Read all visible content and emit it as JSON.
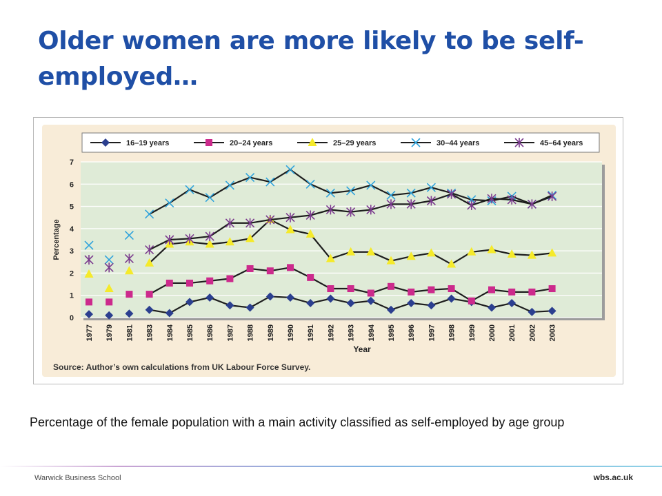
{
  "slide": {
    "title": "Older women are more likely to be self-employed…",
    "caption": "Percentage of the female population with a main activity classified as self-employed by age group",
    "footer_school": "Warwick Business School",
    "footer_url": "wbs.ac.uk"
  },
  "colors": {
    "title": "#1f4fa6",
    "panel_bg": "#f8ecd8",
    "plot_bg": "#dfebd7",
    "grid": "#ffffff",
    "series_16_19": "#2b3f8f",
    "series_20_24": "#cc2a8c",
    "series_25_29": "#f5ea2a",
    "series_30_44": "#2fa3dc",
    "series_45_64": "#7b3b8e",
    "line": "#1e1e1e"
  },
  "chart_data": {
    "type": "line",
    "title": "",
    "xlabel": "Year",
    "ylabel": "Percentage",
    "ylim": [
      0,
      7
    ],
    "yticks": [
      0,
      1,
      2,
      3,
      4,
      5,
      6,
      7
    ],
    "grid": true,
    "legend_position": "top",
    "source": "Source: Author’s own calculations from UK Labour Force Survey.",
    "categories": [
      "1977",
      "1979",
      "1981",
      "1983",
      "1984",
      "1985",
      "1986",
      "1987",
      "1988",
      "1989",
      "1990",
      "1991",
      "1992",
      "1993",
      "1994",
      "1995",
      "1996",
      "1997",
      "1998",
      "1999",
      "2000",
      "2001",
      "2002",
      "2003"
    ],
    "line_starts_at": "1983",
    "series": [
      {
        "name": "16–19 years",
        "marker": "diamond",
        "color": "#2b3f8f",
        "values": [
          0.15,
          0.1,
          0.18,
          0.35,
          0.2,
          0.7,
          0.9,
          0.55,
          0.45,
          0.95,
          0.9,
          0.65,
          0.85,
          0.65,
          0.75,
          0.35,
          0.65,
          0.55,
          0.85,
          0.7,
          0.45,
          0.65,
          0.25,
          0.3
        ]
      },
      {
        "name": "20–24 years",
        "marker": "square",
        "color": "#cc2a8c",
        "values": [
          0.7,
          0.7,
          1.05,
          1.05,
          1.55,
          1.55,
          1.65,
          1.75,
          2.2,
          2.1,
          2.25,
          1.8,
          1.3,
          1.3,
          1.1,
          1.4,
          1.15,
          1.25,
          1.3,
          0.75,
          1.25,
          1.15,
          1.15,
          1.3
        ]
      },
      {
        "name": "25–29 years",
        "marker": "triangle",
        "color": "#f5ea2a",
        "values": [
          1.95,
          1.3,
          2.1,
          2.45,
          3.3,
          3.4,
          3.3,
          3.4,
          3.55,
          4.4,
          3.95,
          3.75,
          2.65,
          2.95,
          2.95,
          2.55,
          2.75,
          2.9,
          2.4,
          2.95,
          3.05,
          2.85,
          2.8,
          2.9
        ]
      },
      {
        "name": "30–44 years",
        "marker": "x",
        "color": "#2fa3dc",
        "values": [
          3.25,
          2.6,
          3.7,
          4.65,
          5.15,
          5.75,
          5.4,
          5.95,
          6.3,
          6.1,
          6.65,
          6.0,
          5.6,
          5.7,
          5.95,
          5.5,
          5.6,
          5.85,
          5.6,
          5.3,
          5.25,
          5.45,
          5.1,
          5.5
        ]
      },
      {
        "name": "45–64 years",
        "marker": "star",
        "color": "#7b3b8e",
        "values": [
          2.6,
          2.25,
          2.65,
          3.05,
          3.5,
          3.55,
          3.65,
          4.25,
          4.25,
          4.4,
          4.5,
          4.6,
          4.85,
          4.75,
          4.85,
          5.1,
          5.1,
          5.25,
          5.55,
          5.05,
          5.35,
          5.3,
          5.1,
          5.45
        ]
      }
    ]
  }
}
